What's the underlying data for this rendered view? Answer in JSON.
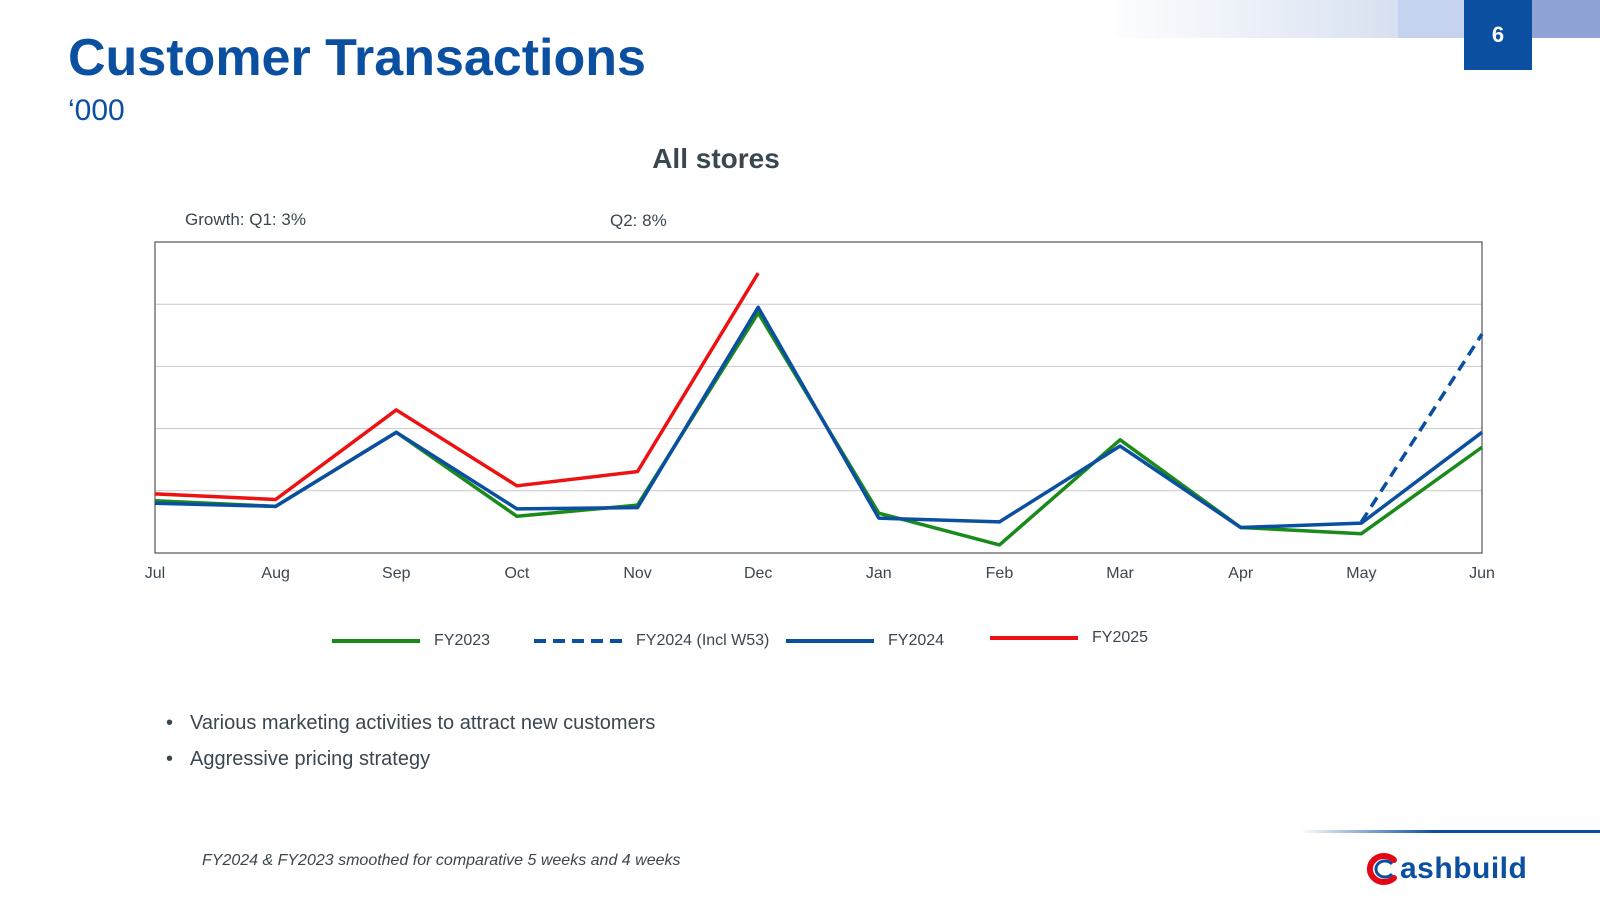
{
  "header": {
    "title": "Customer Transactions",
    "subtitle": "‘000",
    "page_number": "6",
    "decor_colors": [
      "#c6d3ee",
      "#8fa3d6",
      "#0b4fa1"
    ]
  },
  "chart_data": {
    "type": "line",
    "title": "All stores",
    "annotations": [
      "Growth: Q1: 3%",
      "Q2: 8%"
    ],
    "categories": [
      "Jul",
      "Aug",
      "Sep",
      "Oct",
      "Nov",
      "Dec",
      "Jan",
      "Feb",
      "Mar",
      "Apr",
      "May",
      "Jun"
    ],
    "ylim": [
      0,
      5
    ],
    "y_tick_labels_shown": false,
    "grid": true,
    "legend_position": "bottom",
    "series": [
      {
        "name": "FY2023",
        "color": "#1a8a1a",
        "style": "solid",
        "values": [
          0.84,
          0.75,
          1.94,
          0.59,
          0.77,
          3.86,
          0.64,
          0.13,
          1.82,
          0.41,
          0.31,
          1.7
        ]
      },
      {
        "name": "FY2024 (Incl W53)",
        "color": "#0b4fa1",
        "style": "dashed",
        "values": [
          null,
          null,
          null,
          null,
          null,
          null,
          null,
          null,
          null,
          null,
          0.5,
          3.52
        ]
      },
      {
        "name": "FY2024",
        "color": "#0b4fa1",
        "style": "solid",
        "values": [
          0.8,
          0.75,
          1.94,
          0.71,
          0.73,
          3.95,
          0.56,
          0.5,
          1.72,
          0.41,
          0.48,
          1.94
        ]
      },
      {
        "name": "FY2025",
        "color": "#ee1111",
        "style": "solid",
        "values": [
          0.95,
          0.86,
          2.3,
          1.08,
          1.31,
          4.5,
          null,
          null,
          null,
          null,
          null,
          null
        ]
      }
    ]
  },
  "bullets": [
    "Various marketing activities to attract new customers",
    "Aggressive pricing strategy"
  ],
  "footnote": "FY2024 & FY2023 smoothed for comparative 5 weeks and 4 weeks",
  "logo": {
    "text": "ashbuild",
    "brand_colors": [
      "#e30613",
      "#0b4fa1"
    ]
  }
}
